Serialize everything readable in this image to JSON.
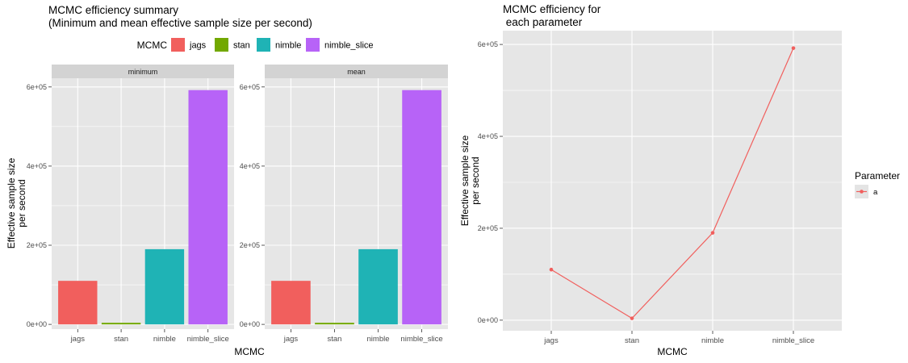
{
  "figure": {
    "kind": "ggplot side-by-side MCMC comparison figure"
  },
  "colors": {
    "background": "#FFFFFF",
    "panel_bg": "#E6E6E6",
    "strip_bg": "#D3D3D3",
    "grid": "#FFFFFF",
    "tick_mark": "#333333",
    "tick_label": "#4D4D4D",
    "strip_text": "#1A1A1A",
    "title_text": "#000000",
    "legend_key_bg": "#E4E4E4",
    "series": {
      "jags": "#F15F5D",
      "stan": "#72A800",
      "nimble": "#1FB3B5",
      "nimble_slice": "#B763F7"
    },
    "parameter_a": "#F15F5D"
  },
  "chart_data": [
    {
      "type": "bar",
      "title": "MCMC efficiency summary",
      "subtitle": "(Minimum and mean effective sample size per second)",
      "facets": [
        "minimum",
        "mean"
      ],
      "categories": [
        "jags",
        "stan",
        "nimble",
        "nimble_slice"
      ],
      "series": [
        {
          "name": "minimum",
          "values": [
            110000,
            4000,
            190000,
            592000
          ]
        },
        {
          "name": "mean",
          "values": [
            110000,
            4000,
            190000,
            592000
          ]
        }
      ],
      "xlabel": "MCMC",
      "ylabel_lines": [
        "Effective sample size",
        "per second"
      ],
      "ylim": [
        -12000,
        622000
      ],
      "yticks": [
        {
          "value": 0,
          "label": "0e+00"
        },
        {
          "value": 200000,
          "label": "2e+05"
        },
        {
          "value": 400000,
          "label": "4e+05"
        },
        {
          "value": 600000,
          "label": "6e+05"
        }
      ],
      "yminor": [
        100000,
        300000,
        500000
      ],
      "grid": true,
      "legend": {
        "title": "MCMC",
        "position": "top",
        "items": [
          "jags",
          "stan",
          "nimble",
          "nimble_slice"
        ]
      }
    },
    {
      "type": "line",
      "title": "MCMC efficiency for",
      "subtitle": " each parameter",
      "categories": [
        "jags",
        "stan",
        "nimble",
        "nimble_slice"
      ],
      "series": [
        {
          "name": "a",
          "values": [
            110000,
            4000,
            190000,
            592000
          ]
        }
      ],
      "xlabel": "MCMC",
      "ylabel_lines": [
        "Effective sample size",
        "per second"
      ],
      "ylim": [
        -23000,
        630000
      ],
      "yticks": [
        {
          "value": 0,
          "label": "0e+00"
        },
        {
          "value": 200000,
          "label": "2e+05"
        },
        {
          "value": 400000,
          "label": "4e+05"
        },
        {
          "value": 600000,
          "label": "6e+05"
        }
      ],
      "yminor": [
        100000,
        300000,
        500000
      ],
      "grid": true,
      "legend": {
        "title": "Parameter",
        "position": "right",
        "items": [
          "a"
        ]
      }
    }
  ]
}
